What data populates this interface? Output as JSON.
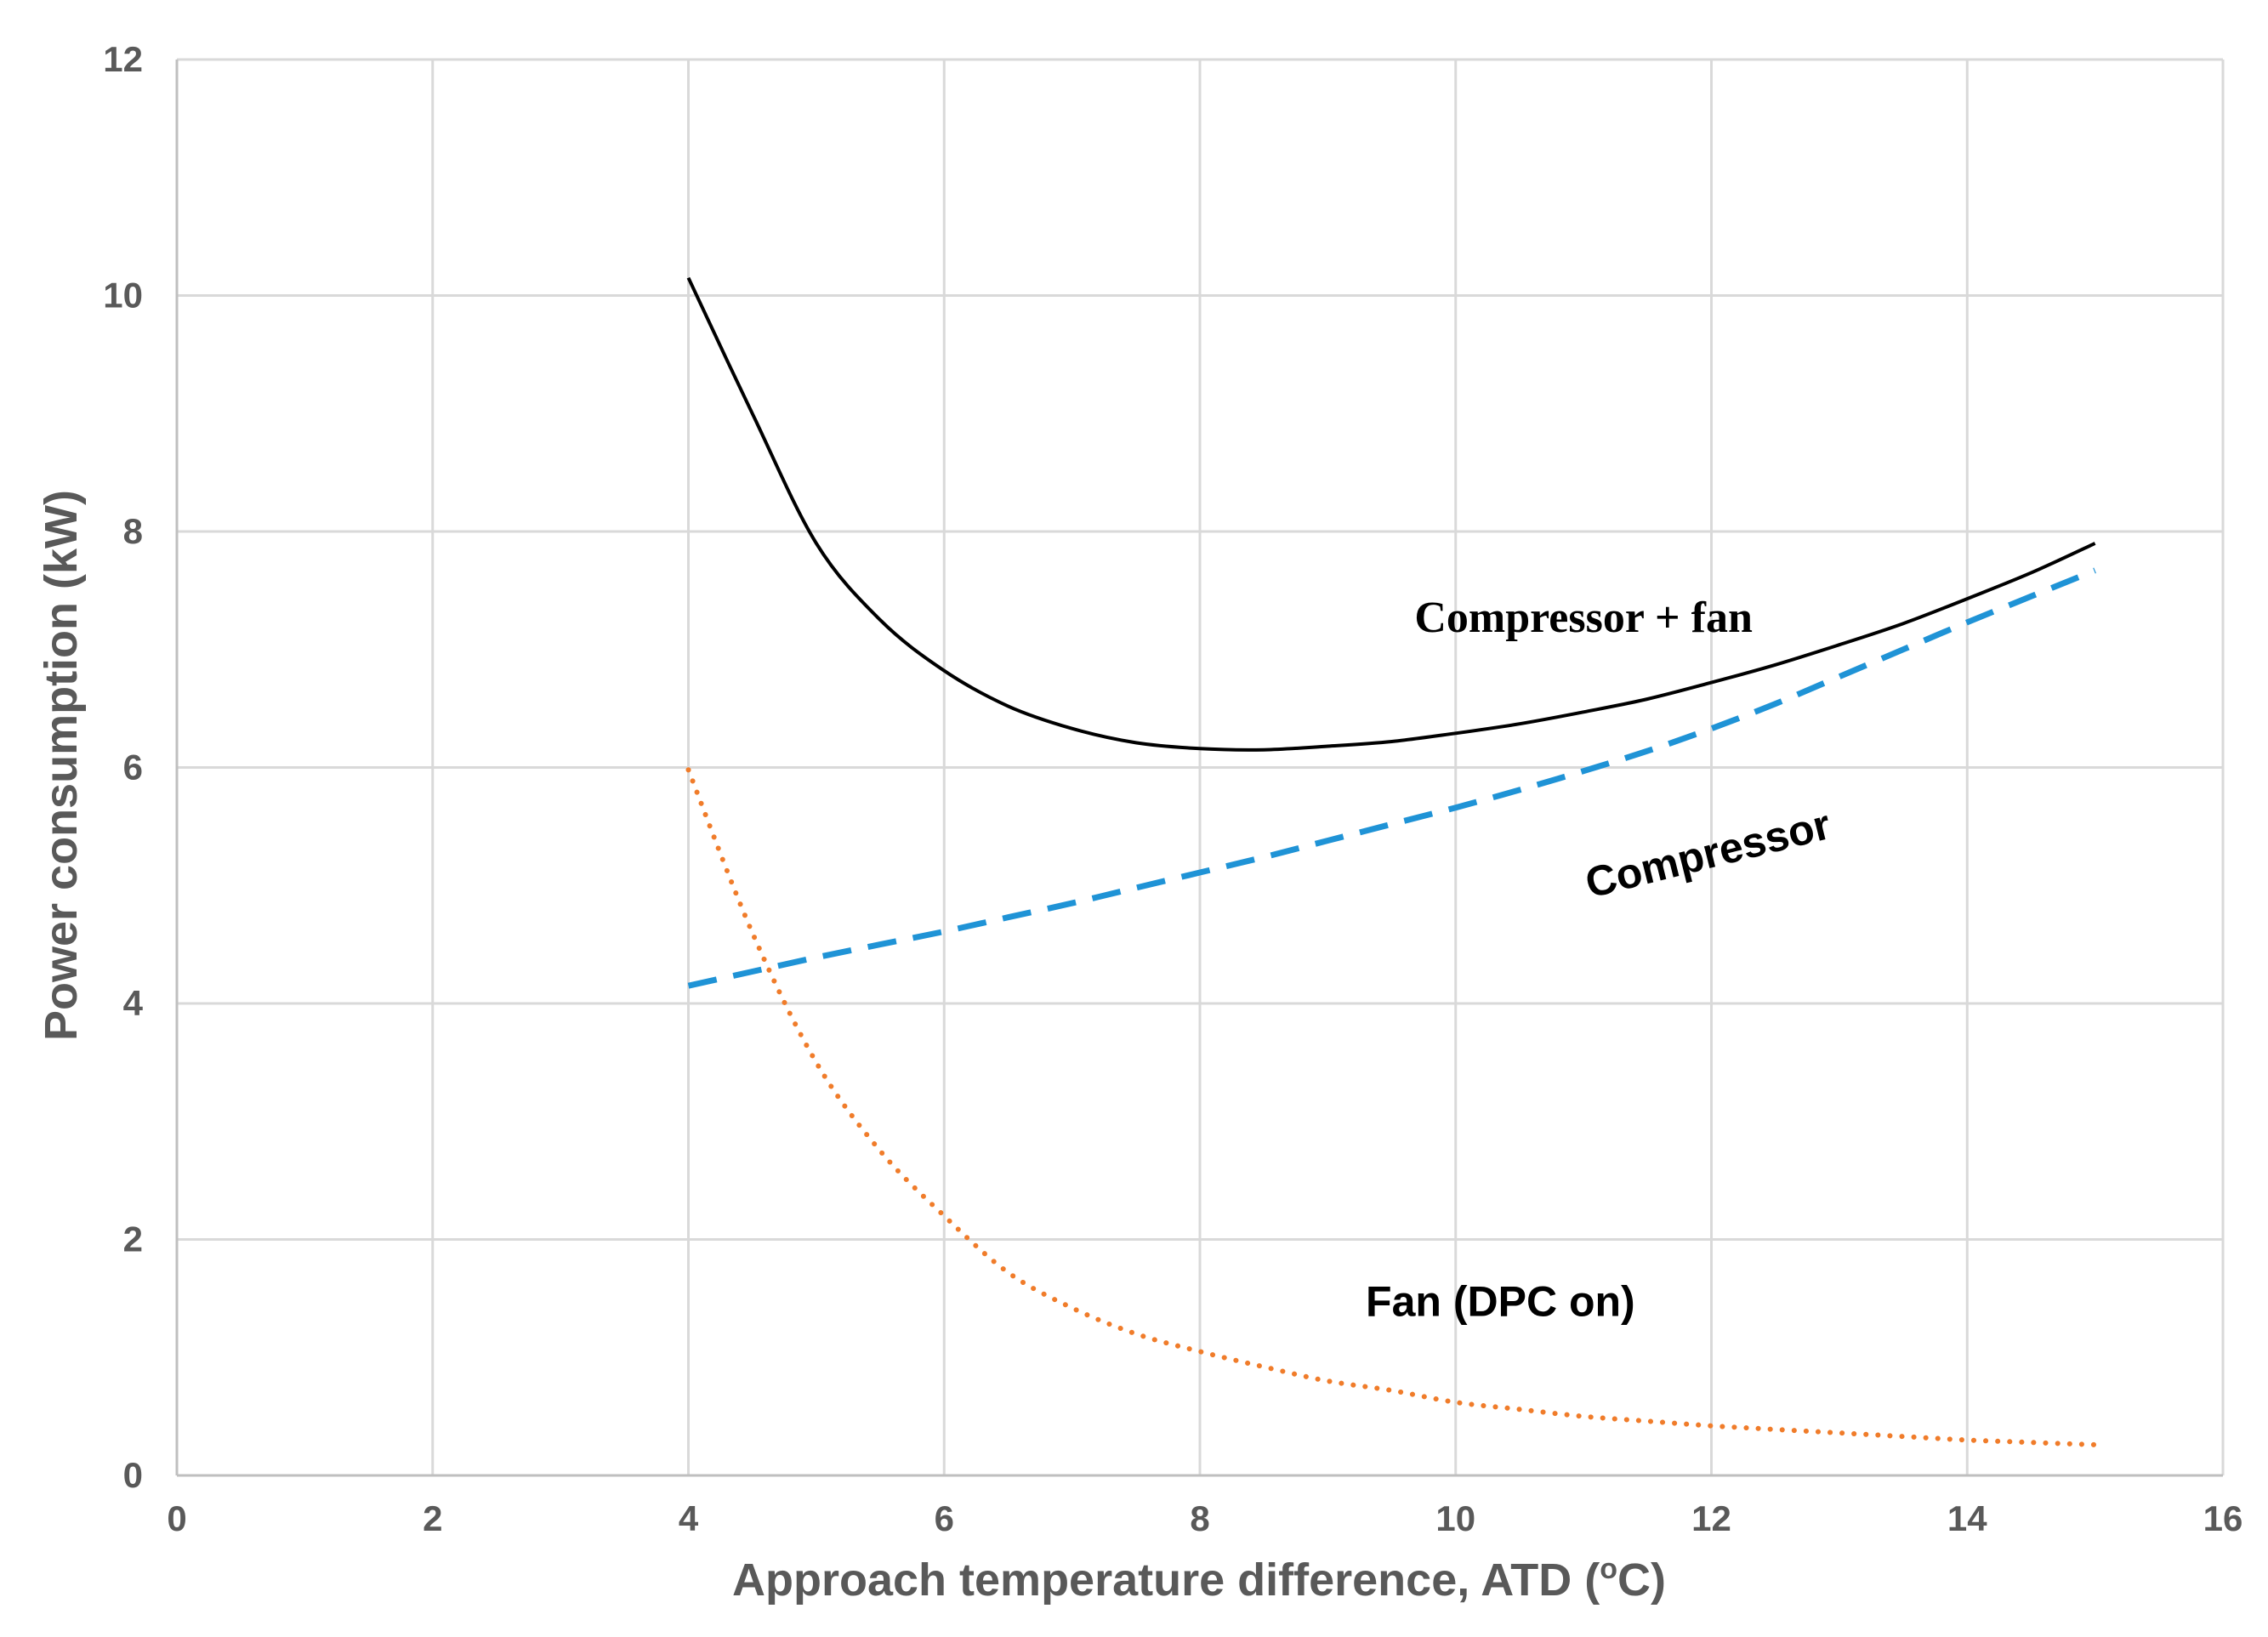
{
  "chart_data": {
    "type": "line",
    "title": "",
    "xlabel": "Approach temperature difference, ATD (",
    "xlabel_super": "o",
    "xlabel_end": "C)",
    "ylabel": "Power consumption (kW)",
    "xlim": [
      0,
      16
    ],
    "ylim": [
      0,
      12
    ],
    "xticks": [
      0,
      2,
      4,
      6,
      8,
      10,
      12,
      14,
      16
    ],
    "yticks": [
      0,
      2,
      4,
      6,
      8,
      10,
      12
    ],
    "grid": true,
    "series": [
      {
        "name": "Compressor + fan",
        "style": "solid",
        "color": "#000000",
        "x": [
          4,
          4.5,
          5,
          5.5,
          6,
          6.5,
          7,
          7.5,
          8,
          8.5,
          9,
          9.5,
          10,
          10.5,
          11,
          11.5,
          12,
          12.5,
          13,
          13.5,
          14,
          14.5,
          15
        ],
        "y": [
          10.15,
          9.0,
          7.9,
          7.25,
          6.82,
          6.52,
          6.33,
          6.21,
          6.16,
          6.15,
          6.18,
          6.22,
          6.29,
          6.37,
          6.47,
          6.58,
          6.72,
          6.87,
          7.04,
          7.22,
          7.43,
          7.65,
          7.9
        ]
      },
      {
        "name": "Compressor",
        "style": "dashed",
        "color": "#1f93d6",
        "x": [
          4,
          4.5,
          5,
          5.5,
          6,
          6.5,
          7,
          7.5,
          8,
          8.5,
          9,
          9.5,
          10,
          10.5,
          11,
          11.5,
          12,
          12.5,
          13,
          13.5,
          14,
          14.5,
          15
        ],
        "y": [
          4.15,
          4.27,
          4.39,
          4.5,
          4.61,
          4.73,
          4.85,
          4.98,
          5.11,
          5.24,
          5.38,
          5.52,
          5.66,
          5.81,
          5.97,
          6.14,
          6.33,
          6.54,
          6.77,
          7.0,
          7.23,
          7.45,
          7.67
        ]
      },
      {
        "name": "Fan (DPC on)",
        "style": "dotted",
        "color": "#f07c2a",
        "x": [
          4,
          4.5,
          5,
          5.5,
          6,
          6.5,
          7,
          7.5,
          8,
          8.5,
          9,
          9.5,
          10,
          10.5,
          11,
          11.5,
          12,
          12.5,
          13,
          13.5,
          14,
          14.5,
          15
        ],
        "y": [
          5.98,
          4.6,
          3.5,
          2.75,
          2.2,
          1.72,
          1.42,
          1.2,
          1.05,
          0.92,
          0.8,
          0.72,
          0.62,
          0.56,
          0.5,
          0.46,
          0.42,
          0.39,
          0.36,
          0.33,
          0.3,
          0.28,
          0.26
        ]
      }
    ],
    "annotations": [
      {
        "text": "Compressor + fan",
        "x": 11.0,
        "y": 7.15,
        "anchor": "middle",
        "rotate": 0,
        "font": "serif"
      },
      {
        "text": "Compressor",
        "x": 12.0,
        "y": 5.15,
        "anchor": "middle",
        "rotate": -14,
        "font": "sans"
      },
      {
        "text": "Fan (DPC on)",
        "x": 10.35,
        "y": 1.35,
        "anchor": "middle",
        "rotate": 0,
        "font": "sans"
      }
    ]
  }
}
